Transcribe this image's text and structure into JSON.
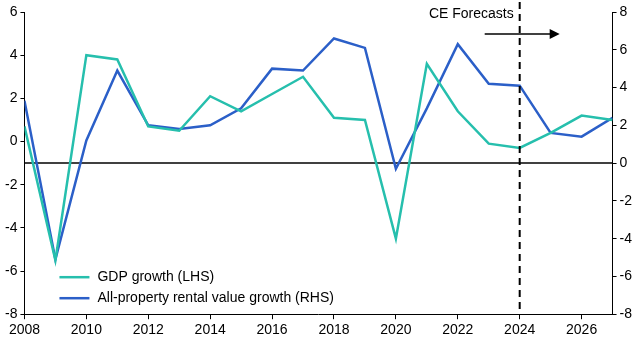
{
  "chart_data": {
    "type": "line",
    "x": [
      2008,
      2009,
      2010,
      2011,
      2012,
      2013,
      2014,
      2015,
      2016,
      2017,
      2018,
      2019,
      2020,
      2021,
      2022,
      2023,
      2024,
      2025,
      2026,
      2027
    ],
    "xlim": [
      2008,
      2027
    ],
    "xticks": [
      2008,
      2010,
      2012,
      2014,
      2016,
      2018,
      2020,
      2022,
      2024,
      2026
    ],
    "ylim": [
      -8,
      6
    ],
    "yticks": [
      -8,
      -6,
      -4,
      -2,
      0,
      2,
      4,
      6
    ],
    "y2lim": [
      -8,
      8
    ],
    "y2ticks": [
      -8,
      -6,
      -4,
      -2,
      0,
      2,
      4,
      6,
      8
    ],
    "grid": false,
    "legend": "lower left",
    "annotations": [
      {
        "text": "CE Forecasts",
        "x": 2024
      }
    ],
    "series": [
      {
        "name": "GDP growth (LHS)",
        "color": "#26bfad",
        "values": [
          0.7,
          -5.5,
          4.0,
          3.8,
          0.7,
          0.5,
          2.1,
          1.4,
          2.2,
          3.0,
          1.1,
          1.0,
          -4.5,
          3.6,
          1.4,
          -0.1,
          -0.3,
          0.4,
          1.2,
          1.0
        ]
      },
      {
        "name": "All-property rental value growth (RHS)",
        "color": "#2b5fc8",
        "axis": "y2",
        "values": [
          3.3,
          -5.1,
          1.2,
          4.9,
          2.0,
          1.8,
          2.0,
          2.9,
          5.0,
          4.9,
          6.6,
          6.1,
          -0.3,
          2.9,
          6.3,
          4.2,
          4.1,
          1.6,
          1.4,
          2.4
        ]
      }
    ]
  }
}
